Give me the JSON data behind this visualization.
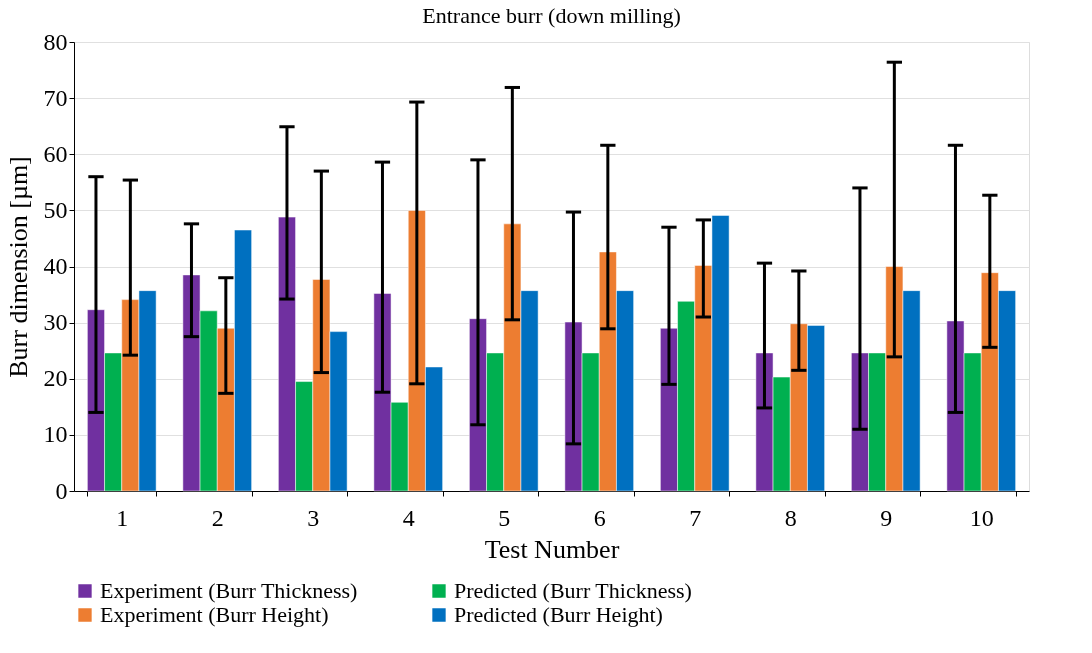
{
  "chart_data": {
    "type": "bar",
    "title": "Entrance burr (down milling)",
    "xlabel": "Test Number",
    "ylabel": "Burr dimension [µm]",
    "categories": [
      "1",
      "2",
      "3",
      "4",
      "5",
      "6",
      "7",
      "8",
      "9",
      "10"
    ],
    "series": [
      {
        "name": "Experiment (Burr Thickness)",
        "color": "#7030a0",
        "values": [
          32.3,
          38.5,
          48.8,
          35.2,
          30.7,
          30.1,
          29,
          24.6,
          24.6,
          30.3
        ],
        "errors": [
          [
            14,
            56
          ],
          [
            27.5,
            47.6
          ],
          [
            34.2,
            64.9
          ],
          [
            17.6,
            58.6
          ],
          [
            11.8,
            59
          ],
          [
            8.4,
            49.7
          ],
          [
            19,
            47
          ],
          [
            14.8,
            40.6
          ],
          [
            11,
            54
          ],
          [
            14,
            61.6
          ]
        ]
      },
      {
        "name": "Predicted (Burr Thickness)",
        "color": "#00b050",
        "values": [
          24.6,
          32.1,
          19.5,
          15.8,
          24.6,
          24.6,
          33.8,
          20.3,
          24.6,
          24.6
        ]
      },
      {
        "name": "Experiment (Burr Height)",
        "color": "#ed7d31",
        "values": [
          34.1,
          29,
          37.7,
          50,
          47.6,
          42.6,
          40.2,
          29.8,
          40,
          38.9
        ],
        "errors": [
          [
            24.2,
            55.4
          ],
          [
            17.4,
            38
          ],
          [
            21.1,
            57
          ],
          [
            19.1,
            69.3
          ],
          [
            30.5,
            71.9
          ],
          [
            28.9,
            61.6
          ],
          [
            31,
            48.3
          ],
          [
            21.5,
            39.2
          ],
          [
            23.9,
            76.4
          ],
          [
            25.6,
            52.7
          ]
        ]
      },
      {
        "name": "Predicted (Burr Height)",
        "color": "#0070c0",
        "values": [
          35.7,
          46.5,
          28.4,
          22.1,
          35.7,
          35.7,
          49.1,
          29.5,
          35.7,
          35.7
        ]
      }
    ],
    "ylim": [
      0,
      80
    ],
    "yticks": [
      0,
      10,
      20,
      30,
      40,
      50,
      60,
      70,
      80
    ],
    "grid": "y",
    "legend": "bottom"
  }
}
